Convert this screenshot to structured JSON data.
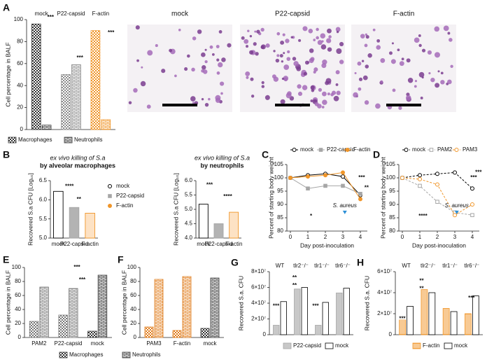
{
  "micrographs": [
    {
      "title": "mock"
    },
    {
      "title": "P22-capsid"
    },
    {
      "title": "F-actin"
    }
  ],
  "chart_data": [
    {
      "type": "bar",
      "panel": "A",
      "y_label": "Cell percentage in BALF",
      "category_label_position": "top",
      "categories": [
        "mock",
        "P22-capsid",
        "F-actin"
      ],
      "category_colors": [
        "#333333",
        "#8c8c8c",
        "#f0962a"
      ],
      "series": [
        {
          "name": "Macrophages",
          "pattern": "checker",
          "color": "#333333",
          "values": [
            96,
            50,
            90
          ]
        },
        {
          "name": "Neutrophils",
          "pattern": "brick",
          "color": "#333333",
          "values": [
            4,
            59,
            9
          ]
        }
      ],
      "ylim": [
        0,
        100
      ],
      "yticks": [
        0,
        20,
        40,
        60,
        80,
        100
      ],
      "annotations": [
        "***",
        "***",
        "***"
      ]
    },
    {
      "type": "bar",
      "panel": "B",
      "title_lines": [
        "ex vivo killing of S.a",
        "by alveolar macrophages"
      ],
      "y_label": "Recovered S.a CFU [Log₁₀]",
      "categories": [
        "mock",
        "P22-capsid",
        "F-actin"
      ],
      "values": [
        6.22,
        5.8,
        5.65
      ],
      "colors": [
        "#000000",
        "#a6a6a6",
        "#f0962a"
      ],
      "fills": [
        "#ffffff",
        "#b3b3b3",
        "#fde2c4"
      ],
      "ylim": [
        5.0,
        6.5
      ],
      "yticks": [
        {
          "value": 5.0,
          "label": "5.0"
        },
        5.5,
        {
          "value": 6.0,
          "label": "6.0"
        },
        6.5
      ],
      "legend": true,
      "annotations": [
        "****",
        "**"
      ]
    },
    {
      "type": "bar",
      "title_lines": [
        "ex vivo killing of S.a",
        "by neutrophils"
      ],
      "y_label": "Recovered S.a CFU [Log₁₀]",
      "categories": [
        "mock",
        "P22-capsid",
        "F-actin"
      ],
      "values": [
        5.18,
        4.5,
        4.9
      ],
      "colors": [
        "#000000",
        "#a6a6a6",
        "#f0962a"
      ],
      "fills": [
        "#ffffff",
        "#b3b3b3",
        "#fde2c4"
      ],
      "ylim": [
        4.0,
        6.0
      ],
      "yticks": [
        {
          "value": 4.0,
          "label": "4.0"
        },
        4.5,
        {
          "value": 5.0,
          "label": "5.0"
        },
        5.5,
        {
          "value": 6.0,
          "label": "6.0"
        }
      ],
      "legend": false,
      "annotations": [
        "***",
        "****"
      ]
    },
    {
      "type": "line",
      "panel": "C",
      "y_label": "Percent of starting body weight",
      "x_label": "Day post-inoculation",
      "x": [
        0,
        1,
        2,
        3,
        4
      ],
      "series": [
        {
          "name": "mock",
          "color": "#000000",
          "marker": "circle-open",
          "dash": false,
          "values": [
            100,
            101,
            101.5,
            100.5,
            93.5
          ]
        },
        {
          "name": "P22-capsid",
          "color": "#a6a6a6",
          "marker": "square",
          "dash": false,
          "values": [
            100,
            96,
            97,
            97,
            94
          ]
        },
        {
          "name": "F-actin",
          "color": "#f0962a",
          "marker": "circle",
          "dash": false,
          "values": [
            100,
            100.5,
            101,
            102,
            92
          ]
        }
      ],
      "xlim": [
        -0.2,
        4.4
      ],
      "xticks": [
        0,
        1,
        2,
        3,
        4
      ],
      "ylim": [
        80,
        105
      ],
      "yticks": [
        80,
        85,
        90,
        95,
        100,
        105
      ],
      "annotations": [
        "*",
        "S. aureus",
        "***",
        "**"
      ]
    },
    {
      "type": "line",
      "panel": "D",
      "y_label": "Percent of starting body weight",
      "x_label": "Day post-inoculation",
      "x": [
        0,
        1,
        2,
        3,
        4
      ],
      "series": [
        {
          "name": "mock",
          "color": "#000000",
          "marker": "circle-open",
          "dash": true,
          "values": [
            100,
            101,
            101.5,
            102,
            96
          ]
        },
        {
          "name": "PAM2",
          "color": "#a6a6a6",
          "marker": "square-open",
          "dash": true,
          "values": [
            100,
            97,
            91,
            87,
            86
          ]
        },
        {
          "name": "PAM3",
          "color": "#f0962a",
          "marker": "circle-open",
          "dash": true,
          "values": [
            100,
            99.5,
            97.5,
            86,
            90
          ]
        }
      ],
      "xlim": [
        -0.2,
        4.4
      ],
      "xticks": [
        0,
        1,
        2,
        3,
        4
      ],
      "ylim": [
        80,
        105
      ],
      "yticks": [
        80,
        85,
        90,
        95,
        100,
        105
      ],
      "annotations": [
        "****",
        "S. aureus",
        "***",
        "***"
      ]
    },
    {
      "type": "bar",
      "panel": "E",
      "y_label": "Cell percentage in BALF",
      "categories": [
        "PAM2",
        "P22-capsid",
        "mock"
      ],
      "category_colors": [
        "#777777",
        "#777777",
        "#333333"
      ],
      "series": [
        {
          "name": "Macrophages",
          "pattern": "checker",
          "color": "#333333",
          "values": [
            23,
            32,
            9
          ]
        },
        {
          "name": "Neutrophils",
          "pattern": "brick",
          "color": "#333333",
          "values": [
            72,
            70,
            89
          ]
        }
      ],
      "ylim": [
        0,
        100
      ],
      "yticks": [
        0,
        20,
        40,
        60,
        80,
        100
      ],
      "annotations": [
        "***",
        "***"
      ]
    },
    {
      "type": "bar",
      "panel": "F",
      "y_label": "Cell percentage in BALF",
      "categories": [
        "PAM3",
        "F-actin",
        "mock"
      ],
      "category_colors": [
        "#e07b1a",
        "#e07b1a",
        "#333333"
      ],
      "series": [
        {
          "name": "Macrophages",
          "pattern": "checker",
          "color": "#333333",
          "values": [
            15,
            10,
            13
          ]
        },
        {
          "name": "Neutrophils",
          "pattern": "brick",
          "color": "#333333",
          "values": [
            83,
            87,
            85
          ]
        }
      ],
      "ylim": [
        0,
        100
      ],
      "yticks": [
        0,
        20,
        40,
        60,
        80,
        100
      ]
    },
    {
      "type": "bar",
      "panel": "G",
      "y_label": "Recovered S.a. CFU",
      "category_label_position": "top",
      "categories": [
        "WT",
        "tlr2⁻/⁻",
        "tlr1⁻/⁻",
        "tlr6⁻/⁻"
      ],
      "series": [
        {
          "name": "P22-capsid",
          "color": "#a6a6a6",
          "fill": "#c8c8c8",
          "values": [
            12000000,
            58000000,
            12000000,
            53000000
          ]
        },
        {
          "name": "mock",
          "color": "#000000",
          "fill": "#ffffff",
          "values": [
            42000000,
            60000000,
            41000000,
            59000000
          ]
        }
      ],
      "ylim": [
        0,
        80000000
      ],
      "yticks": [
        0,
        {
          "value": 20000000,
          "label": "2×10⁷"
        },
        {
          "value": 40000000,
          "label": "4×10⁷"
        },
        {
          "value": 60000000,
          "label": "6×10⁷"
        },
        {
          "value": 80000000,
          "label": "8×10⁷"
        }
      ],
      "annotations": [
        "***",
        "**",
        "**",
        "***"
      ]
    },
    {
      "type": "bar",
      "panel": "H",
      "y_label": "Recovered S.a. CFU",
      "category_label_position": "top",
      "categories": [
        "WT",
        "tlr2⁻/⁻",
        "tlr1⁻/⁻",
        "tlr6⁻/⁻"
      ],
      "series": [
        {
          "name": "F-actin",
          "color": "#f0962a",
          "pattern": "hatch",
          "values": [
            14000000,
            43000000,
            25000000,
            20000000
          ]
        },
        {
          "name": "mock",
          "color": "#000000",
          "fill": "#ffffff",
          "values": [
            27000000,
            40000000,
            22000000,
            37000000
          ]
        }
      ],
      "ylim": [
        0,
        60000000
      ],
      "yticks": [
        0,
        {
          "value": 20000000,
          "label": "2×10⁷"
        },
        {
          "value": 40000000,
          "label": "4×10⁷"
        },
        {
          "value": 60000000,
          "label": "6×10⁷"
        }
      ],
      "annotations": [
        "***",
        "**",
        "**",
        "***"
      ]
    }
  ]
}
